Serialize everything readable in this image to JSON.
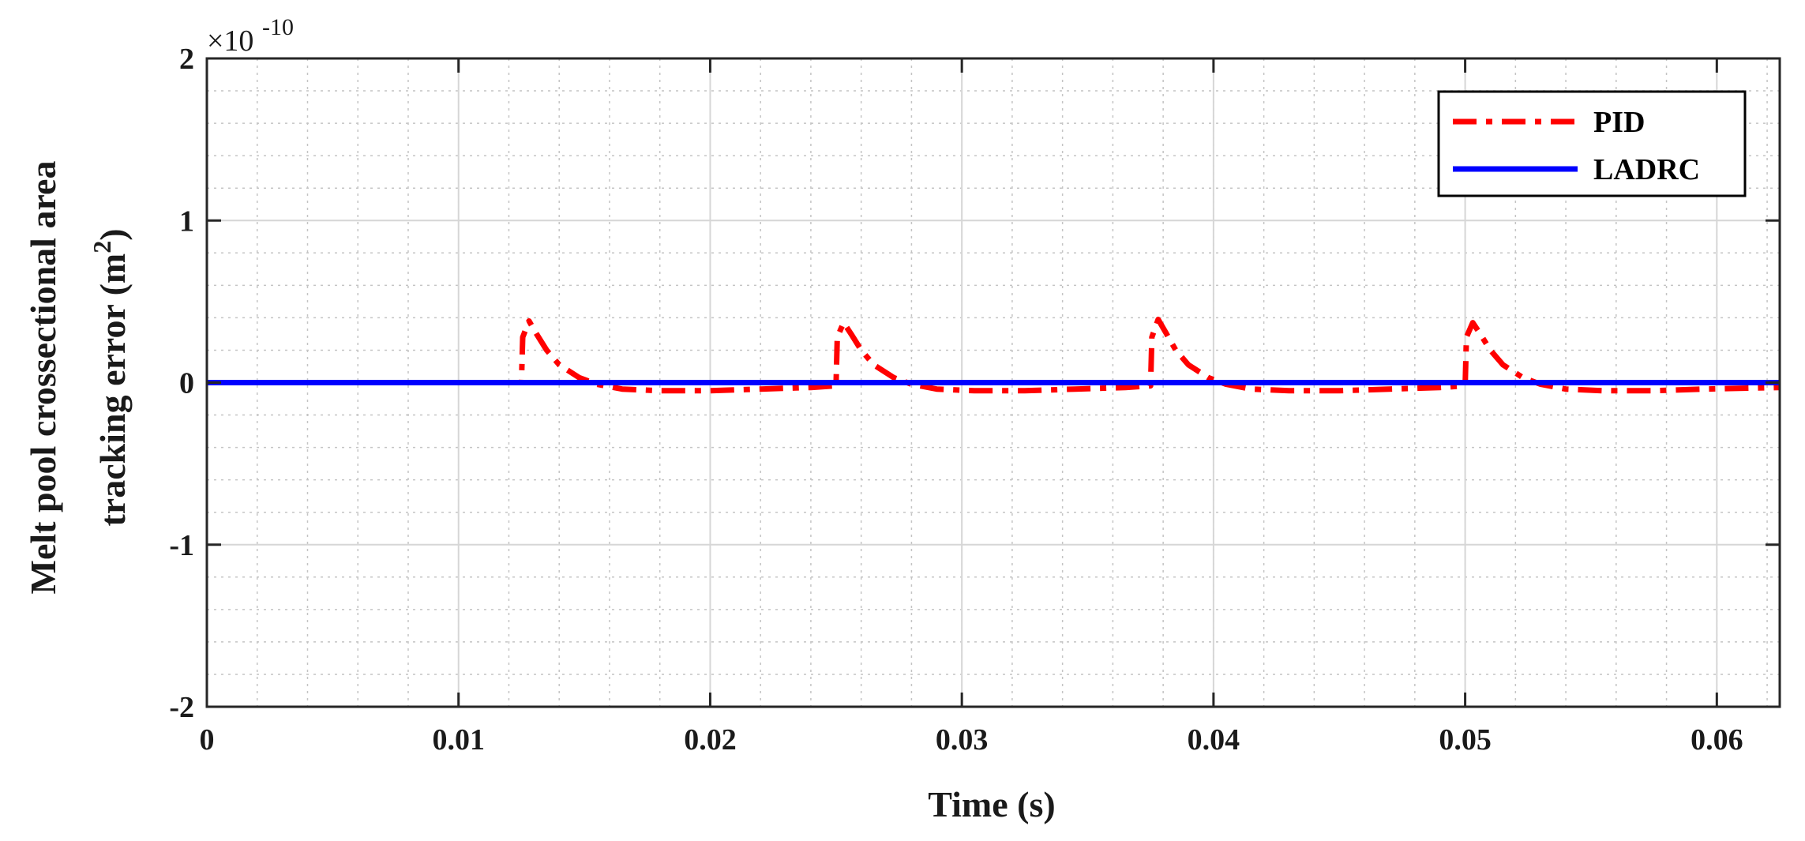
{
  "chart_data": {
    "type": "line",
    "title": "",
    "xlabel": "Time (s)",
    "ylabel_line1": "Melt pool crossectional area",
    "ylabel_line2": "tracking error (m",
    "ylabel_sup": "2",
    "ylabel_end": ")",
    "y_multiplier_base": "×10",
    "y_multiplier_exp": "-10",
    "xlim": [
      0,
      0.0625
    ],
    "ylim": [
      -2,
      2
    ],
    "xticks": [
      0,
      0.01,
      0.02,
      0.03,
      0.04,
      0.05,
      0.06
    ],
    "xtick_labels": [
      "0",
      "0.01",
      "0.02",
      "0.03",
      "0.04",
      "0.05",
      "0.06"
    ],
    "yticks": [
      -2,
      -1,
      0,
      1,
      2
    ],
    "ytick_labels": [
      "-2",
      "-1",
      "0",
      "1",
      "2"
    ],
    "grid": true,
    "minor_grid": true,
    "legend_position": "top-right",
    "series": [
      {
        "name": "PID",
        "color": "#ff0000",
        "style": "dash-dot",
        "x": [
          0,
          0.0125,
          0.01255,
          0.0128,
          0.0131,
          0.0135,
          0.014,
          0.0148,
          0.0155,
          0.0165,
          0.018,
          0.02,
          0.022,
          0.024,
          0.025,
          0.02505,
          0.0253,
          0.0256,
          0.026,
          0.0265,
          0.0273,
          0.028,
          0.029,
          0.0305,
          0.0325,
          0.0345,
          0.0365,
          0.0375,
          0.03755,
          0.0378,
          0.0381,
          0.0385,
          0.039,
          0.0398,
          0.0405,
          0.0415,
          0.043,
          0.045,
          0.047,
          0.049,
          0.05,
          0.05005,
          0.0503,
          0.0506,
          0.051,
          0.0515,
          0.0523,
          0.053,
          0.054,
          0.0555,
          0.0575,
          0.0595,
          0.0625
        ],
        "y": [
          0,
          0,
          0.28,
          0.38,
          0.3,
          0.2,
          0.11,
          0.03,
          -0.01,
          -0.04,
          -0.05,
          -0.05,
          -0.04,
          -0.03,
          -0.02,
          0.28,
          0.37,
          0.3,
          0.2,
          0.11,
          0.03,
          -0.01,
          -0.04,
          -0.05,
          -0.05,
          -0.04,
          -0.03,
          -0.02,
          0.28,
          0.39,
          0.31,
          0.2,
          0.11,
          0.03,
          -0.01,
          -0.04,
          -0.05,
          -0.05,
          -0.04,
          -0.03,
          -0.02,
          0.28,
          0.37,
          0.3,
          0.2,
          0.11,
          0.03,
          -0.01,
          -0.04,
          -0.05,
          -0.05,
          -0.04,
          -0.03
        ]
      },
      {
        "name": "LADRC",
        "color": "#0000ff",
        "style": "solid",
        "x": [
          0,
          0.0625
        ],
        "y": [
          0,
          0
        ]
      }
    ]
  }
}
